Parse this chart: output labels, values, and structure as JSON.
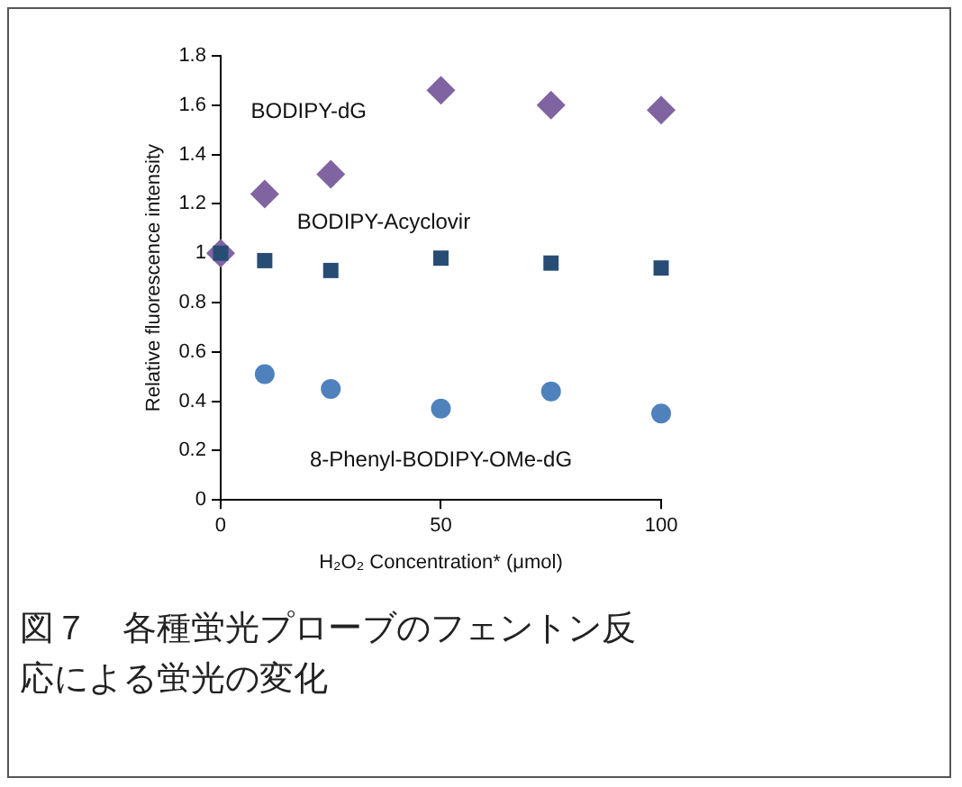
{
  "chart_data": {
    "type": "scatter",
    "xlabel": "H₂O₂ Concentration* (μmol)",
    "ylabel": "Relative fluorescence intensity",
    "x": [
      0,
      10,
      25,
      50,
      75,
      100
    ],
    "xlim": [
      0,
      100
    ],
    "xticks": [
      0,
      50,
      100
    ],
    "ylim": [
      0,
      1.8
    ],
    "yticks": [
      0,
      0.2,
      0.4,
      0.6,
      0.8,
      1,
      1.2,
      1.4,
      1.6,
      1.8
    ],
    "grid": false,
    "legend": false,
    "series": [
      {
        "name": "BODIPY-dG",
        "color": "#8064a2",
        "marker": "diamond",
        "values": [
          1.0,
          1.24,
          1.32,
          1.66,
          1.6,
          1.58
        ]
      },
      {
        "name": "BODIPY-Acyclovir",
        "color": "#284d75",
        "marker": "square",
        "values": [
          1.0,
          0.97,
          0.93,
          0.98,
          0.96,
          0.94
        ]
      },
      {
        "name": "8-Phenyl-BODIPY-OMe-dG",
        "color": "#4f81bd",
        "marker": "circle",
        "values": [
          null,
          0.51,
          0.45,
          0.37,
          0.44,
          0.35
        ]
      }
    ],
    "annotations": [
      "図７　各種蛍光プローブのフェントン反応による蛍光の変化"
    ]
  }
}
